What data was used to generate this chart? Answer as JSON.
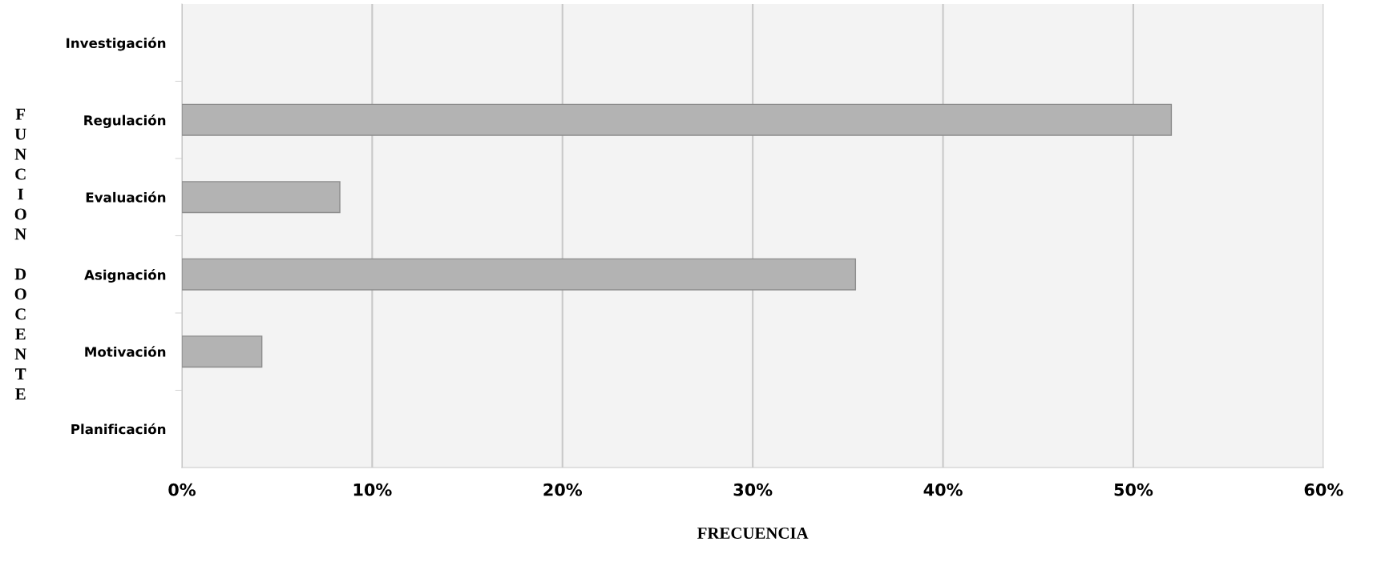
{
  "chart_data": {
    "type": "bar",
    "orientation": "horizontal",
    "xlabel": "FRECUENCIA",
    "ylabel": "FUNCION DOCENTE",
    "categories": [
      "Investigación",
      "Regulación",
      "Evaluación",
      "Asignación",
      "Motivación",
      "Planificación"
    ],
    "values": [
      0,
      52,
      8.3,
      35.4,
      4.2,
      0
    ],
    "color": "#b3b3b3",
    "xlim": [
      0,
      60
    ],
    "xticks": [
      {
        "value": 0,
        "label": "0%"
      },
      {
        "value": 10,
        "label": "10%"
      },
      {
        "value": 20,
        "label": "20%"
      },
      {
        "value": 30,
        "label": "30%"
      },
      {
        "value": 40,
        "label": "40%"
      },
      {
        "value": 50,
        "label": "50%"
      },
      {
        "value": 60,
        "label": "60%"
      }
    ],
    "grid": "x",
    "legend": false
  }
}
